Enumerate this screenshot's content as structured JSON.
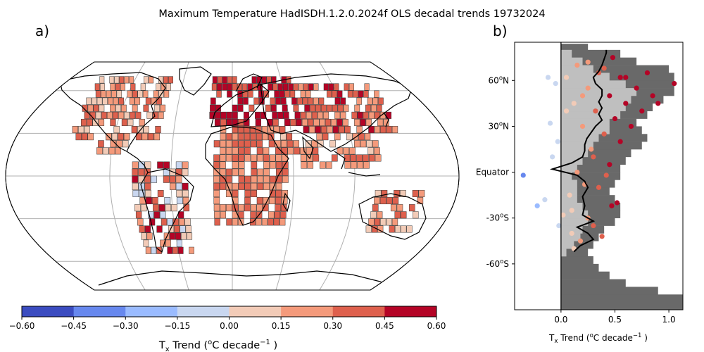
{
  "figure": {
    "title": "Maximum Temperature HadISDH.1.2.0.2024f OLS decadal trends 19732024",
    "panel_a_label": "a)",
    "panel_b_label": "b)"
  },
  "chart_data": [
    {
      "type": "heatmap",
      "panel": "a",
      "description_type": "gridded map of trends (Robinson projection)",
      "colorbar": {
        "label_main": "T",
        "label_sub": "x",
        "label_rest": " Trend (",
        "label_sup1": "o",
        "label_mid": "C decade",
        "label_sup2": "−1",
        "label_end": " )",
        "ticks": [
          "-0.60",
          "-0.45",
          "-0.30",
          "-0.15",
          "0.00",
          "0.15",
          "0.30",
          "0.45",
          "0.60"
        ],
        "bins": [
          {
            "min": -0.6,
            "max": -0.45,
            "color": "#3b4cc0"
          },
          {
            "min": -0.45,
            "max": -0.3,
            "color": "#6788ee"
          },
          {
            "min": -0.3,
            "max": -0.15,
            "color": "#9abbff"
          },
          {
            "min": -0.15,
            "max": 0.0,
            "color": "#c9d7f0"
          },
          {
            "min": 0.0,
            "max": 0.15,
            "color": "#f2cbb7"
          },
          {
            "min": 0.15,
            "max": 0.3,
            "color": "#f49a7b"
          },
          {
            "min": 0.3,
            "max": 0.45,
            "color": "#de604d"
          },
          {
            "min": 0.45,
            "max": 0.6,
            "color": "#b40426"
          }
        ]
      },
      "gridlines": {
        "lon_step": 60,
        "lat_step": 30
      }
    },
    {
      "type": "scatter",
      "panel": "b",
      "xlabel_main": "T",
      "xlabel_sub": "x",
      "xlabel_rest": " Trend (",
      "xlabel_sup1": "o",
      "xlabel_mid": "C decade",
      "xlabel_sup2": "−1",
      "xlabel_end": " )",
      "xlim": [
        -0.43,
        1.13
      ],
      "ylim": [
        -90,
        85
      ],
      "xticks": [
        {
          "value": 0.0,
          "label": "0.0"
        },
        {
          "value": 0.5,
          "label": "0.5"
        },
        {
          "value": 1.0,
          "label": "1.0"
        }
      ],
      "yticks": [
        {
          "value": 60,
          "label_pre": "60",
          "label_sup": "o",
          "label_post": "N"
        },
        {
          "value": 30,
          "label_pre": "30",
          "label_sup": "o",
          "label_post": "N"
        },
        {
          "value": 0,
          "label_pre": "Equator",
          "label_sup": "",
          "label_post": ""
        },
        {
          "value": -30,
          "label_pre": "-30",
          "label_sup": "o",
          "label_post": "S"
        },
        {
          "value": -60,
          "label_pre": "-60",
          "label_sup": "o",
          "label_post": "S"
        }
      ],
      "zero_line": 0.0,
      "land_fraction_bars": [
        [
          -90,
          -80,
          1.13
        ],
        [
          -80,
          -75,
          0.9
        ],
        [
          -75,
          -70,
          0.6
        ],
        [
          -70,
          -65,
          0.45
        ],
        [
          -65,
          -60,
          0.35
        ],
        [
          -60,
          -55,
          0.3
        ],
        [
          -55,
          -50,
          0.25
        ],
        [
          -50,
          -45,
          0.3
        ],
        [
          -45,
          -40,
          0.35
        ],
        [
          -40,
          -35,
          0.4
        ],
        [
          -35,
          -30,
          0.5
        ],
        [
          -30,
          -25,
          0.55
        ],
        [
          -25,
          -20,
          0.55
        ],
        [
          -20,
          -15,
          0.5
        ],
        [
          -15,
          -10,
          0.45
        ],
        [
          -10,
          -5,
          0.5
        ],
        [
          -5,
          0,
          0.55
        ],
        [
          0,
          5,
          0.55
        ],
        [
          5,
          10,
          0.6
        ],
        [
          10,
          15,
          0.65
        ],
        [
          15,
          20,
          0.75
        ],
        [
          20,
          25,
          0.8
        ],
        [
          25,
          30,
          0.75
        ],
        [
          30,
          35,
          0.7
        ],
        [
          35,
          40,
          0.8
        ],
        [
          40,
          45,
          0.85
        ],
        [
          45,
          50,
          0.95
        ],
        [
          50,
          55,
          1.05
        ],
        [
          55,
          60,
          1.05
        ],
        [
          60,
          65,
          1.05
        ],
        [
          65,
          70,
          1.0
        ],
        [
          70,
          75,
          0.7
        ],
        [
          75,
          80,
          0.55
        ],
        [
          80,
          84,
          0.25
        ]
      ],
      "observed_fraction_bars": [
        [
          -55,
          -50,
          0.05
        ],
        [
          -50,
          -45,
          0.12
        ],
        [
          -45,
          -40,
          0.18
        ],
        [
          -40,
          -35,
          0.2
        ],
        [
          -35,
          -30,
          0.25
        ],
        [
          -30,
          -25,
          0.25
        ],
        [
          -25,
          -20,
          0.2
        ],
        [
          -20,
          -15,
          0.15
        ],
        [
          -15,
          -10,
          0.15
        ],
        [
          -10,
          -5,
          0.15
        ],
        [
          -5,
          0,
          0.1
        ],
        [
          0,
          5,
          0.15
        ],
        [
          5,
          10,
          0.2
        ],
        [
          10,
          15,
          0.25
        ],
        [
          15,
          20,
          0.3
        ],
        [
          20,
          25,
          0.35
        ],
        [
          25,
          30,
          0.45
        ],
        [
          30,
          35,
          0.45
        ],
        [
          35,
          40,
          0.55
        ],
        [
          40,
          45,
          0.6
        ],
        [
          45,
          50,
          0.65
        ],
        [
          50,
          55,
          0.7
        ],
        [
          55,
          60,
          0.6
        ],
        [
          60,
          65,
          0.45
        ],
        [
          65,
          70,
          0.3
        ],
        [
          70,
          75,
          0.2
        ],
        [
          75,
          80,
          0.1
        ]
      ],
      "points": [
        [
          -0.35,
          -2
        ],
        [
          -0.22,
          -22
        ],
        [
          -0.15,
          -18
        ],
        [
          -0.12,
          62
        ],
        [
          -0.1,
          32
        ],
        [
          -0.08,
          10
        ],
        [
          -0.05,
          58
        ],
        [
          -0.02,
          -35
        ],
        [
          -0.03,
          20
        ],
        [
          0.02,
          -28
        ],
        [
          0.05,
          62
        ],
        [
          0.08,
          -15
        ],
        [
          0.1,
          -40
        ],
        [
          0.12,
          45
        ],
        [
          0.15,
          70
        ],
        [
          0.18,
          -45
        ],
        [
          0.2,
          30
        ],
        [
          0.22,
          -8
        ],
        [
          0.25,
          55
        ],
        [
          0.28,
          15
        ],
        [
          0.3,
          -35
        ],
        [
          0.32,
          40
        ],
        [
          0.35,
          65
        ],
        [
          0.38,
          -42
        ],
        [
          0.4,
          25
        ],
        [
          0.45,
          50
        ],
        [
          0.5,
          35
        ],
        [
          0.52,
          -20
        ],
        [
          0.55,
          62
        ],
        [
          0.6,
          45
        ],
        [
          0.65,
          30
        ],
        [
          0.7,
          55
        ],
        [
          0.75,
          40
        ],
        [
          0.8,
          65
        ],
        [
          0.85,
          50
        ],
        [
          0.9,
          45
        ],
        [
          1.05,
          58
        ],
        [
          0.48,
          75
        ],
        [
          0.42,
          -2
        ],
        [
          0.47,
          -22
        ],
        [
          0.12,
          -50
        ],
        [
          0.25,
          -30
        ],
        [
          0.3,
          10
        ],
        [
          0.55,
          20
        ],
        [
          0.2,
          50
        ],
        [
          0.15,
          0
        ],
        [
          0.05,
          40
        ],
        [
          0.1,
          -25
        ],
        [
          0.35,
          -10
        ],
        [
          0.45,
          5
        ],
        [
          0.6,
          62
        ],
        [
          0.4,
          68
        ],
        [
          0.25,
          72
        ]
      ],
      "zonal_mean_line": [
        [
          0.12,
          -52
        ],
        [
          0.18,
          -48
        ],
        [
          0.3,
          -44
        ],
        [
          0.25,
          -40
        ],
        [
          0.15,
          -36
        ],
        [
          0.3,
          -32
        ],
        [
          0.2,
          -28
        ],
        [
          0.22,
          -22
        ],
        [
          0.2,
          -16
        ],
        [
          0.25,
          -10
        ],
        [
          0.22,
          -6
        ],
        [
          0.15,
          -2
        ],
        [
          -0.08,
          2
        ],
        [
          0.1,
          6
        ],
        [
          0.2,
          10
        ],
        [
          0.22,
          14
        ],
        [
          0.22,
          18
        ],
        [
          0.24,
          22
        ],
        [
          0.28,
          26
        ],
        [
          0.32,
          30
        ],
        [
          0.38,
          34
        ],
        [
          0.35,
          38
        ],
        [
          0.38,
          42
        ],
        [
          0.35,
          46
        ],
        [
          0.38,
          50
        ],
        [
          0.38,
          54
        ],
        [
          0.32,
          58
        ],
        [
          0.3,
          62
        ],
        [
          0.35,
          66
        ],
        [
          0.38,
          70
        ],
        [
          0.4,
          74
        ],
        [
          0.42,
          78
        ],
        [
          0.42,
          80
        ]
      ]
    }
  ]
}
